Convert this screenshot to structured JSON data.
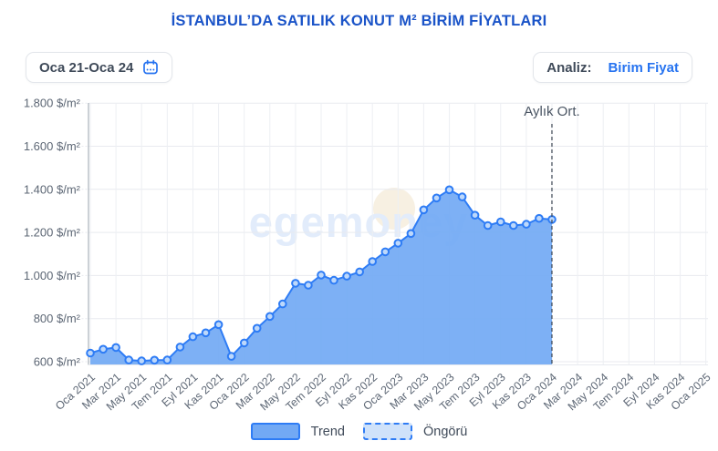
{
  "header": {
    "title": "İSTANBUL’DA SATILIK KONUT M² BİRİM FİYATLARI"
  },
  "controls": {
    "date_range": "Oca 21-Oca 24",
    "analysis_label": "Analiz:",
    "analysis_value": "Birim Fiyat"
  },
  "watermark": "egemoney",
  "legend": {
    "trend": "Trend",
    "forecast": "Öngörü"
  },
  "chart_data": {
    "type": "area",
    "title": "İSTANBUL’DA SATILIK KONUT M² BİRİM FİYATLARI",
    "ylabel_unit": "$/m²",
    "ylim": [
      600,
      1800
    ],
    "y_step": 200,
    "grid": true,
    "legend_position": "bottom",
    "annotation": "Aylık Ort.",
    "annotation_note": "dashed vertical line at Oca 2024, end of trend series",
    "y_tick_labels": [
      "1.800 $/m²",
      "1.600 $/m²",
      "1.400 $/m²",
      "1.200 $/m²",
      "1.000 $/m²",
      "800 $/m²",
      "600 $/m²"
    ],
    "x_tick_labels": [
      "Oca 2021",
      "Mar 2021",
      "May 2021",
      "Tem 2021",
      "Eyl 2021",
      "Kas 2021",
      "Oca 2022",
      "Mar 2022",
      "May 2022",
      "Tem 2022",
      "Eyl 2022",
      "Kas 2022",
      "Oca 2023",
      "Mar 2023",
      "May 2023",
      "Tem 2023",
      "Eyl 2023",
      "Kas 2023",
      "Oca 2024",
      "Mar 2024",
      "May 2024",
      "Tem 2024",
      "Eyl 2024",
      "Kas 2024",
      "Oca 2025"
    ],
    "x_start": "Oca 2021",
    "x_interval": "monthly",
    "series": [
      {
        "name": "Trend",
        "values": [
          640,
          658,
          666,
          608,
          604,
          607,
          608,
          668,
          716,
          734,
          772,
          625,
          687,
          755,
          810,
          868,
          964,
          955,
          1002,
          978,
          997,
          1017,
          1065,
          1110,
          1150,
          1195,
          1305,
          1360,
          1398,
          1365,
          1280,
          1232,
          1249,
          1232,
          1238,
          1265,
          1260
        ]
      }
    ]
  },
  "colors": {
    "title_blue": "#1b54c8",
    "accent_blue": "#2673f0",
    "line": "#2e7cf5",
    "area_fill": "#72a9f4",
    "marker_fill": "#bdd8fb",
    "grid": "#e8eaef",
    "grid_vertical": "#edeff3",
    "axis": "#9aa3ad",
    "tick_text": "#5d6775",
    "annotation_text": "#4a5563",
    "dashed_line": "#3d4754",
    "watermark": "#e2ecfb",
    "watermark_coin": "#f7f0e2"
  }
}
